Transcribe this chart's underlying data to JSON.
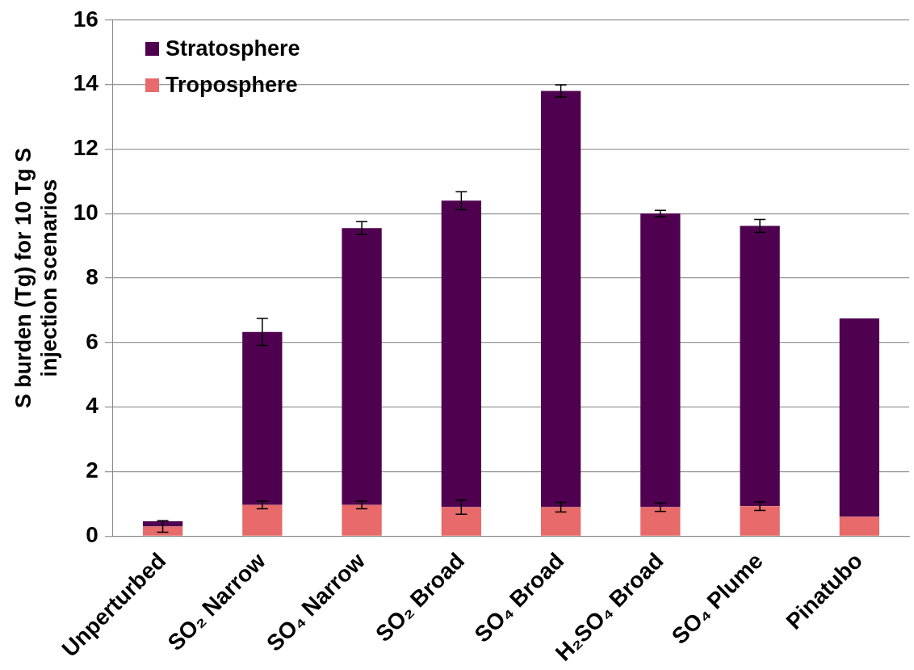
{
  "chart_data": {
    "type": "bar",
    "stacked": true,
    "ylabel": "S burden (Tg) for 10 Tg S injection scenarios",
    "categories": [
      "Unperturbed",
      "SO₂ Narrow",
      "SO₄ Narrow",
      "SO₂ Broad",
      "SO₄ Broad",
      "H₂SO₄ Broad",
      "SO₄ Plume",
      "Pinatubo"
    ],
    "series": [
      {
        "name": "Troposphere",
        "color": "#e86a6a",
        "values": [
          0.3,
          0.97,
          0.97,
          0.9,
          0.9,
          0.9,
          0.93,
          0.6
        ],
        "errors": [
          0.18,
          0.12,
          0.12,
          0.22,
          0.15,
          0.13,
          0.13,
          null
        ]
      },
      {
        "name": "Stratosphere",
        "color": "#4f004f",
        "values": [
          0.16,
          5.36,
          8.58,
          9.5,
          12.9,
          9.1,
          8.69,
          6.15
        ],
        "errors": [
          null,
          0.42,
          0.2,
          0.28,
          0.19,
          0.1,
          0.2,
          null
        ]
      }
    ],
    "ylim": [
      0,
      16
    ],
    "yticks": [
      0,
      2,
      4,
      6,
      8,
      10,
      12,
      14,
      16
    ],
    "grid": "y",
    "legend": "top left"
  }
}
